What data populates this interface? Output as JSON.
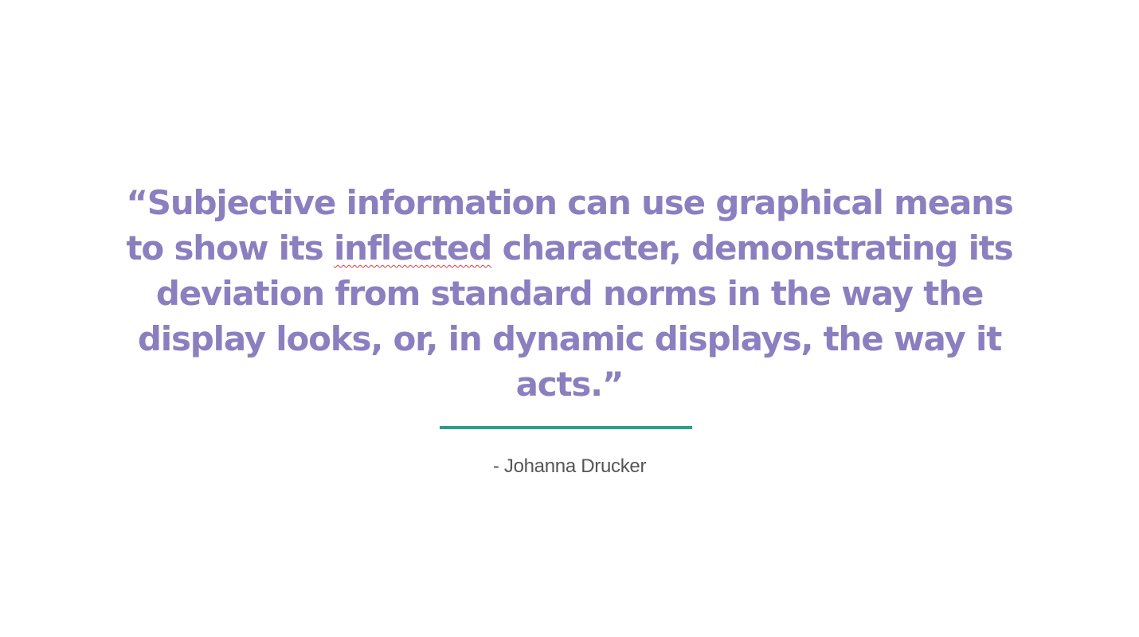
{
  "quote": {
    "before": "“Subjective information can use graphical means to show its ",
    "flagged_word": "inflected",
    "after": " character, demonstrating its deviation from standard norms in the way the display looks, or, in dynamic displays, the way it acts.”"
  },
  "attribution": "- Johanna Drucker",
  "colors": {
    "quote_text": "#8b7fc0",
    "accent_rule": "#2b9e8a",
    "attribution_text": "#555555",
    "spellcheck_underline": "#e0393e",
    "background": "#ffffff"
  }
}
